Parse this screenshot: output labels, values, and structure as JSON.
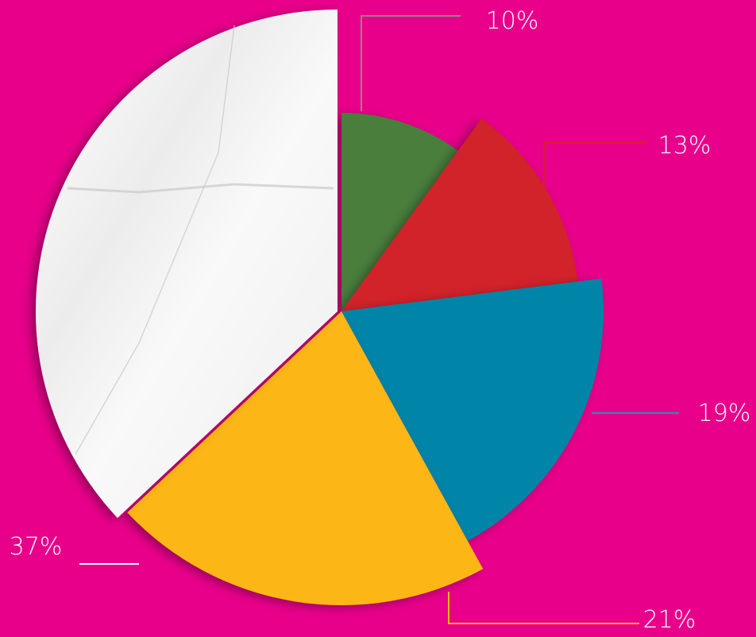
{
  "background_color": "#e8008a",
  "chart_data": {
    "type": "pie",
    "title": "",
    "slices": [
      {
        "value": 10,
        "label": "10%",
        "color": "#4a7e3c",
        "label_color": "#ffffff",
        "leader_color": "#8a8a8a"
      },
      {
        "value": 13,
        "label": "13%",
        "color": "#d2232a",
        "label_color": "#ffffff",
        "leader_color": "#d2232a"
      },
      {
        "value": 19,
        "label": "19%",
        "color": "#0084a8",
        "label_color": "#ffffff",
        "leader_color": "#2a8cb4"
      },
      {
        "value": 21,
        "label": "21%",
        "color": "#fcb614",
        "label_color": "#ffffff",
        "leader_color": "#fcb614"
      },
      {
        "value": 37,
        "label": "37%",
        "color": "#f6f6f6",
        "label_color": "#ffffff",
        "leader_color": "#ffffff",
        "texture": "crumpled-paper"
      }
    ],
    "start": "12 o'clock",
    "direction": "clockwise",
    "legend": "none"
  }
}
